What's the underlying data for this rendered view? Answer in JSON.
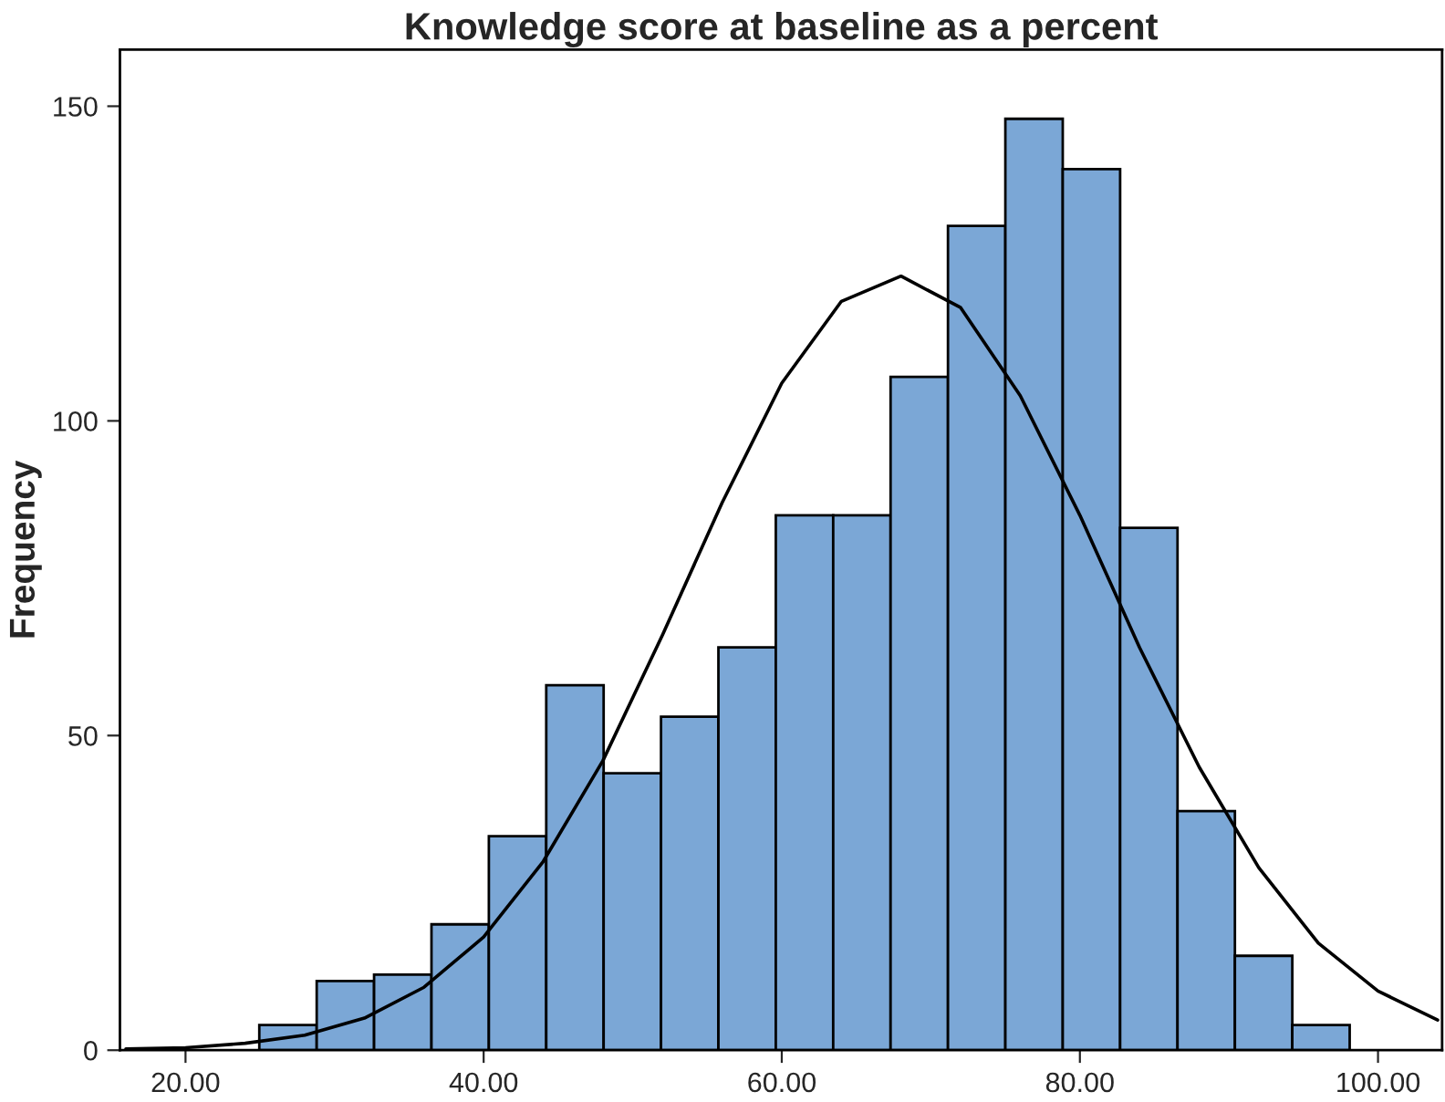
{
  "chart_data": {
    "type": "histogram",
    "title": "Knowledge score at baseline as a percent",
    "ylabel": "Frequency",
    "bins": [
      24.95,
      28.8,
      32.65,
      36.5,
      40.35,
      44.2,
      48.05,
      51.9,
      55.75,
      59.6,
      63.45,
      67.3,
      71.15,
      75.0,
      78.85,
      82.7,
      86.55,
      90.4,
      94.25,
      98.1
    ],
    "values": [
      4,
      11,
      12,
      20,
      34,
      58,
      44,
      53,
      64,
      85,
      85,
      107,
      131,
      148,
      140,
      83,
      38,
      15,
      4
    ],
    "color": "#7ba7d6",
    "series": [
      {
        "type": "line",
        "color": "#000000",
        "x": [
          16,
          20,
          24,
          28,
          32,
          36,
          40,
          44,
          48,
          52,
          56,
          60,
          64,
          68,
          72,
          76,
          80,
          84,
          88,
          92,
          96,
          100,
          104
        ],
        "values": [
          0.2,
          0.4,
          1.1,
          2.4,
          5.1,
          10,
          18,
          30,
          46,
          66,
          87,
          106,
          119,
          123,
          118,
          104,
          85,
          64,
          45,
          29,
          17,
          9.4,
          4.8
        ]
      }
    ],
    "xlim": [
      15.6,
      104.3
    ],
    "ylim": [
      0,
      159
    ],
    "xticks": [
      {
        "value": 20,
        "label": "20.00"
      },
      {
        "value": 40,
        "label": "40.00"
      },
      {
        "value": 60,
        "label": "60.00"
      },
      {
        "value": 80,
        "label": "80.00"
      },
      {
        "value": 100,
        "label": "100.00"
      }
    ],
    "yticks": [
      0,
      50,
      100,
      150
    ],
    "grid": false
  }
}
